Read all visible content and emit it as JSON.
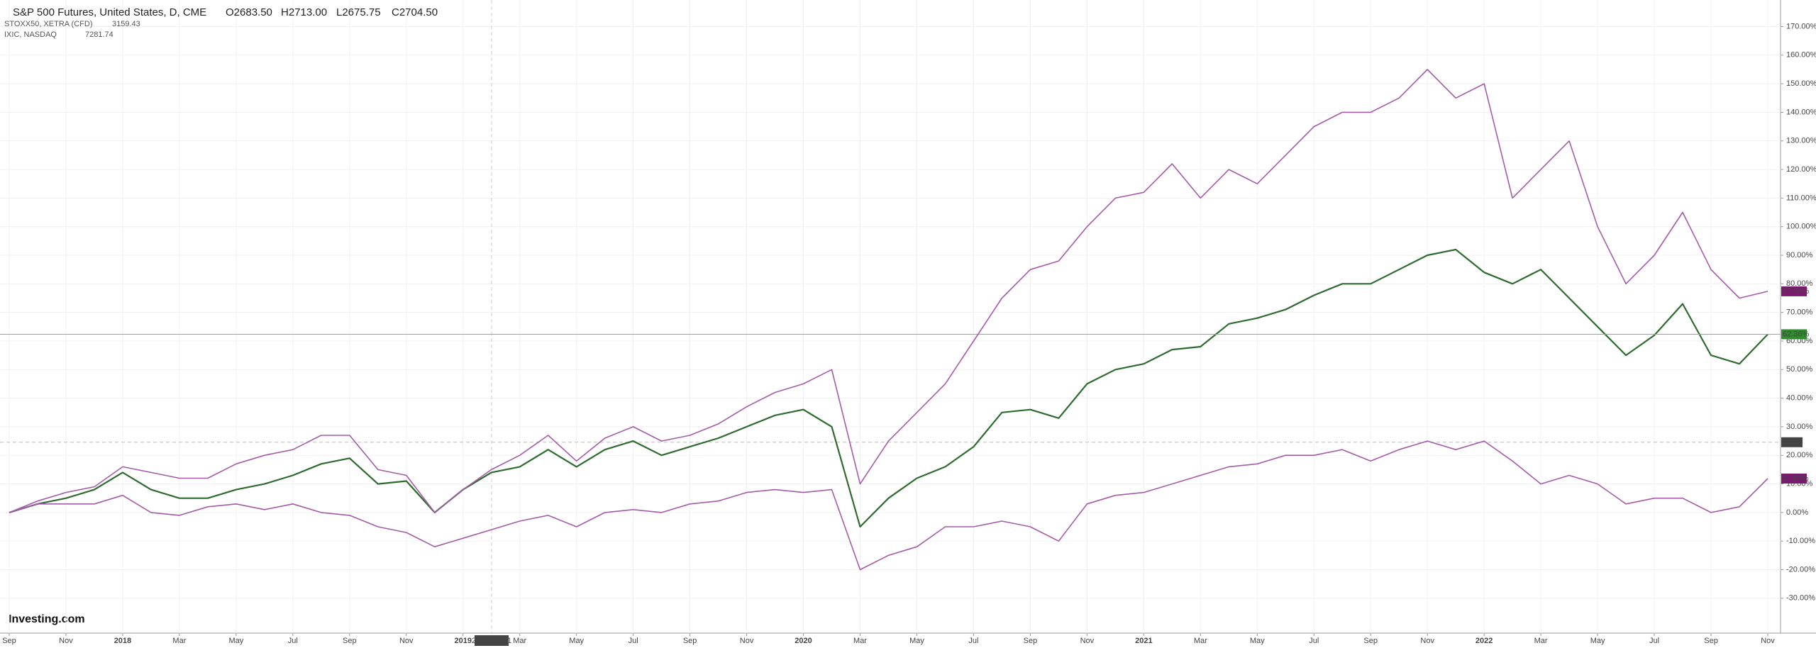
{
  "chart_data": {
    "type": "line",
    "logo": "Investing.com",
    "categories": [
      "Sep",
      null,
      "Nov",
      null,
      "2018",
      null,
      "Mar",
      null,
      "May",
      null,
      "Jul",
      null,
      "Sep",
      null,
      "Nov",
      null,
      "2019",
      null,
      "Mar",
      null,
      "May",
      null,
      "Jul",
      null,
      "Sep",
      null,
      "Nov",
      null,
      "2020",
      null,
      "Mar",
      null,
      "May",
      null,
      "Jul",
      null,
      "Sep",
      null,
      "Nov",
      null,
      "2021",
      null,
      "Mar",
      null,
      "May",
      null,
      "Jul",
      null,
      "Sep",
      null,
      "Nov",
      null,
      "2022",
      null,
      "Mar",
      null,
      "May",
      null,
      "Jul",
      null,
      "Sep",
      null,
      "Nov"
    ],
    "series": [
      {
        "name": "S&P 500 Futures, United States, D, CME",
        "quote": [
          "O2683.50",
          "H2713.00",
          "L2675.75",
          "C2704.50"
        ],
        "color": "#2e6b2e",
        "end_label": "62.36%",
        "values": [
          0,
          3,
          5,
          8,
          14,
          8,
          5,
          5,
          8,
          10,
          13,
          17,
          19,
          10,
          11,
          0,
          8,
          14,
          16,
          22,
          16,
          22,
          25,
          20,
          23,
          26,
          30,
          34,
          36,
          30,
          -5,
          5,
          12,
          16,
          23,
          35,
          36,
          33,
          45,
          50,
          52,
          57,
          58,
          66,
          68,
          71,
          76,
          80,
          80,
          85,
          90,
          92,
          84,
          80,
          85,
          75,
          65,
          55,
          62,
          73,
          55,
          52,
          62.36
        ]
      },
      {
        "name": "STOXX50, XETRA (CFD)",
        "quote": "3159.43",
        "color": "#a45ca8",
        "end_label": "11.87%",
        "values": [
          0,
          3,
          3,
          3,
          6,
          0,
          -1,
          2,
          3,
          1,
          3,
          0,
          -1,
          -5,
          -7,
          -12,
          -9,
          -6,
          -3,
          -1,
          -5,
          0,
          1,
          0,
          3,
          4,
          7,
          8,
          7,
          8,
          -20,
          -15,
          -12,
          -5,
          -5,
          -3,
          -5,
          -10,
          3,
          6,
          7,
          10,
          13,
          16,
          17,
          20,
          20,
          22,
          18,
          22,
          25,
          22,
          25,
          18,
          10,
          13,
          10,
          3,
          5,
          5,
          0,
          2,
          11.87
        ]
      },
      {
        "name": "IXIC, NASDAQ",
        "quote": "7281.74",
        "color": "#a45ca8",
        "end_label": "77.38%",
        "values": [
          0,
          4,
          7,
          9,
          16,
          14,
          12,
          12,
          17,
          20,
          22,
          27,
          27,
          15,
          13,
          0,
          8,
          15,
          20,
          27,
          18,
          26,
          30,
          25,
          27,
          31,
          37,
          42,
          45,
          50,
          10,
          25,
          35,
          45,
          60,
          75,
          85,
          88,
          100,
          110,
          112,
          122,
          110,
          120,
          115,
          125,
          135,
          140,
          140,
          145,
          155,
          145,
          150,
          110,
          120,
          130,
          100,
          80,
          90,
          105,
          85,
          75,
          77.38
        ]
      }
    ],
    "ylim": [
      -42.2,
      179.3
    ],
    "yticks": [
      {
        "value": -30,
        "label": "-30.00%"
      },
      {
        "value": -20,
        "label": "-20.00%"
      },
      {
        "value": -10,
        "label": "-10.00%"
      },
      {
        "value": 0,
        "label": "0.00%"
      },
      {
        "value": 10,
        "label": "10.00%"
      },
      {
        "value": 20,
        "label": "20.00%"
      },
      {
        "value": 30,
        "label": "30.00%"
      },
      {
        "value": 40,
        "label": "40.00%"
      },
      {
        "value": 50,
        "label": "50.00%"
      },
      {
        "value": 60,
        "label": "60.00%"
      },
      {
        "value": 70,
        "label": "70.00%"
      },
      {
        "value": 80,
        "label": "80.00%"
      },
      {
        "value": 90,
        "label": "90.00%"
      },
      {
        "value": 100,
        "label": "100.00%"
      },
      {
        "value": 110,
        "label": "110.00%"
      },
      {
        "value": 120,
        "label": "120.00%"
      },
      {
        "value": 130,
        "label": "130.00%"
      },
      {
        "value": 140,
        "label": "140.00%"
      },
      {
        "value": 150,
        "label": "150.00%"
      },
      {
        "value": 160,
        "label": "160.00%"
      },
      {
        "value": 170,
        "label": "170.00%"
      }
    ],
    "grid": true,
    "crosshair": {
      "x_label": "2019-01-31",
      "y": 24.58
    }
  }
}
